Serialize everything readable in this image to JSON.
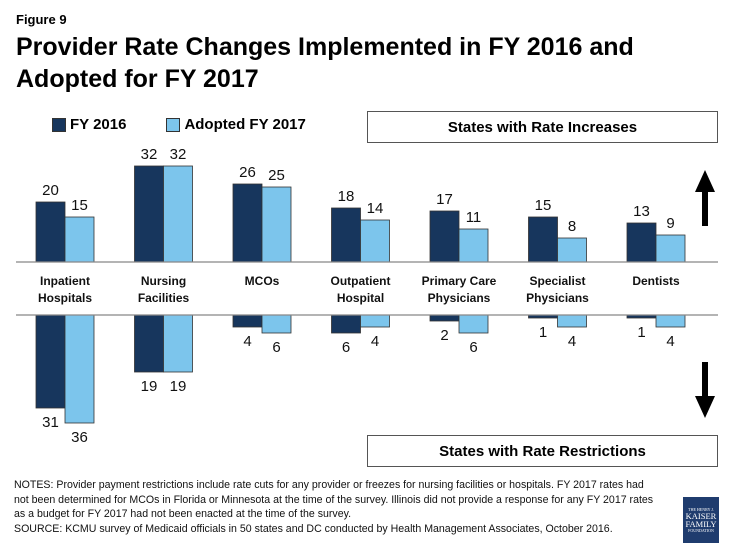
{
  "figure_label": "Figure 9",
  "title": "Provider Rate Changes Implemented in FY 2016 and Adopted for FY 2017",
  "box_increases": "States with Rate Increases",
  "box_restrictions": "States with Rate Restrictions",
  "colors": {
    "fy2016": "#17365d",
    "fy2017": "#7cc5ec"
  },
  "chart_data": {
    "type": "bar",
    "title": "Provider Rate Changes Implemented in FY 2016 and Adopted for FY 2017",
    "categories": [
      "Inpatient\nHospitals",
      "Nursing\nFacilities",
      "MCOs",
      "Outpatient\nHospital",
      "Primary Care\nPhysicians",
      "Specialist\nPhysicians",
      "Dentists"
    ],
    "legend": [
      "FY 2016",
      "Adopted FY 2017"
    ],
    "legend_position": "top-left",
    "increases": {
      "label": "States with Rate Increases",
      "series": [
        {
          "name": "FY 2016",
          "values": [
            20,
            32,
            26,
            18,
            17,
            15,
            13
          ]
        },
        {
          "name": "Adopted FY 2017",
          "values": [
            15,
            32,
            25,
            14,
            11,
            8,
            9
          ]
        }
      ]
    },
    "restrictions": {
      "label": "States with Rate Restrictions",
      "series": [
        {
          "name": "FY 2016",
          "values": [
            31,
            19,
            4,
            6,
            2,
            1,
            1
          ]
        },
        {
          "name": "Adopted FY 2017",
          "values": [
            36,
            19,
            6,
            4,
            6,
            4,
            4
          ]
        }
      ]
    },
    "xlabel": "",
    "ylabel": "",
    "grid": false
  },
  "notes": "NOTES: Provider payment restrictions include rate cuts for any provider or freezes for nursing facilities or hospitals.  FY 2017 rates had not been determined for MCOs in Florida or Minnesota at the time of the survey. Illinois did not provide a response for any FY 2017 rates as a budget for FY 2017 had not been enacted at the time of the survey.",
  "source": "SOURCE: KCMU survey of Medicaid officials in 50 states and DC conducted by Health Management Associates, October 2016.",
  "logo": {
    "line1": "THE HENRY J.",
    "line2": "KAISER",
    "line3": "FAMILY",
    "line4": "FOUNDATION"
  }
}
